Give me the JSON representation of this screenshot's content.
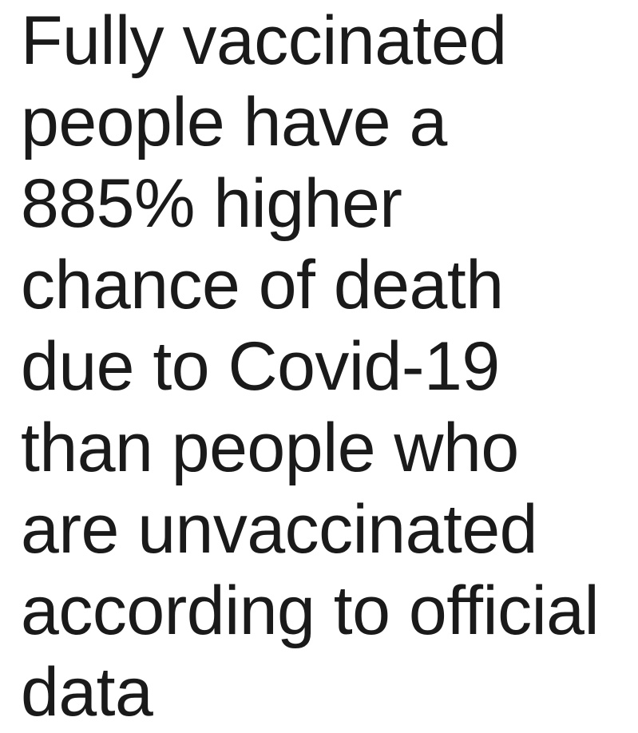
{
  "headline": {
    "lines": [
      "Fully vaccinated",
      "people have a",
      "885% higher",
      "chance of death",
      "due to Covid-19",
      "than people who",
      "are unvaccinated",
      "according to official",
      "data"
    ]
  }
}
